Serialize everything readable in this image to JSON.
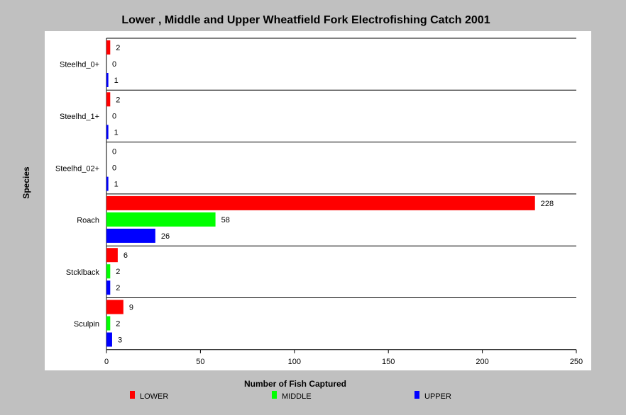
{
  "chart_data": {
    "type": "bar",
    "orientation": "horizontal",
    "title": "Lower , Middle and Upper Wheatfield Fork Electrofishing Catch 2001",
    "xlabel": "Number of Fish Captured",
    "ylabel": "Species",
    "xlim": [
      0,
      250
    ],
    "xticks": [
      0,
      50,
      100,
      150,
      200,
      250
    ],
    "categories": [
      "Steelhd_0+",
      "Steelhd_1+",
      "Steelhd_02+",
      "Roach",
      "Stcklback",
      "Sculpin"
    ],
    "series": [
      {
        "name": "LOWER",
        "color": "#ff0000",
        "values": [
          2,
          2,
          0,
          228,
          6,
          9
        ]
      },
      {
        "name": "MIDDLE",
        "color": "#00ff00",
        "values": [
          0,
          0,
          0,
          58,
          2,
          2
        ]
      },
      {
        "name": "UPPER",
        "color": "#0000ff",
        "values": [
          1,
          1,
          1,
          26,
          2,
          3
        ]
      }
    ],
    "grid": false,
    "legend": "bottom"
  }
}
